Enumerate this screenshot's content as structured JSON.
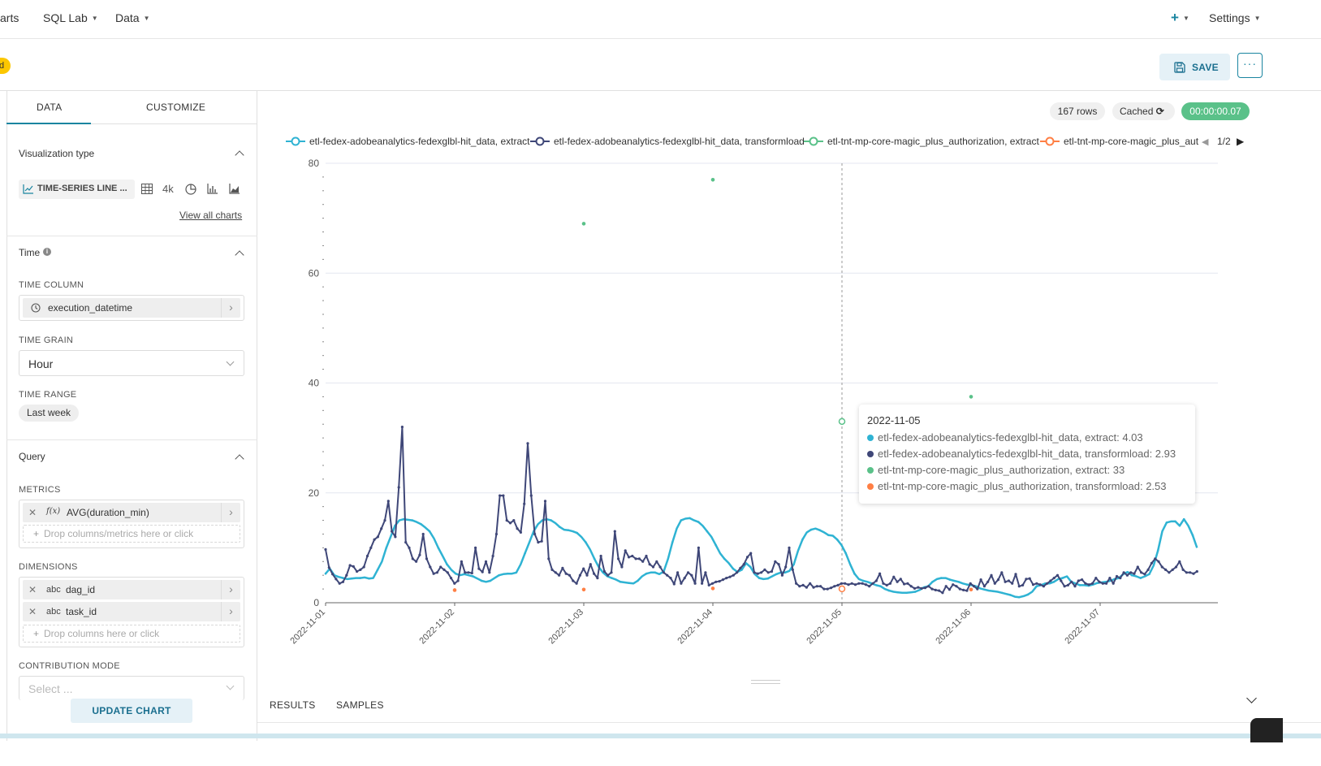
{
  "nav": {
    "charts_label": "arts",
    "sqllab_label": "SQL Lab",
    "data_label": "Data",
    "plus_icon": "+",
    "settings_label": "Settings"
  },
  "header": {
    "status_label": "d",
    "save_label": "SAVE",
    "more_label": "···"
  },
  "left_panel": {
    "tabs": [
      "DATA",
      "CUSTOMIZE"
    ],
    "viz_section_title": "Visualization type",
    "viz_type_label": "TIME-SERIES LINE ...",
    "viz_shortcut_4k": "4k",
    "view_all_label": "View all charts",
    "time_section_title": "Time",
    "time_column_label": "TIME COLUMN",
    "time_column_value": "execution_datetime",
    "time_grain_label": "TIME GRAIN",
    "time_grain_value": "Hour",
    "time_range_label": "TIME RANGE",
    "time_range_value": "Last week",
    "query_section_title": "Query",
    "metrics_label": "METRICS",
    "metric_value": "AVG(duration_min)",
    "metric_type_icon": "f(x)",
    "metrics_drop_placeholder": "Drop columns/metrics here or click",
    "dimensions_label": "DIMENSIONS",
    "dimensions": [
      "dag_id",
      "task_id"
    ],
    "dimension_type_icon": "abc",
    "dimensions_drop_placeholder": "Drop columns here or click",
    "contribution_label": "CONTRIBUTION MODE",
    "contribution_placeholder": "Select ...",
    "update_label": "UPDATE CHART"
  },
  "chart_header": {
    "rows_label": "167 rows",
    "cached_label": "Cached",
    "timer_label": "00:00:00.07"
  },
  "legend": {
    "items": [
      "etl-fedex-adobeanalytics-fedexglbl-hit_data, extract",
      "etl-fedex-adobeanalytics-fedexglbl-hit_data, transformload",
      "etl-tnt-mp-core-magic_plus_authorization, extract",
      "etl-tnt-mp-core-magic_plus_aut"
    ],
    "page_label": "1/2"
  },
  "tooltip": {
    "title": "2022-11-05",
    "rows": [
      "etl-fedex-adobeanalytics-fedexglbl-hit_data, extract: 4.03",
      "etl-fedex-adobeanalytics-fedexglbl-hit_data, transformload: 2.93",
      "etl-tnt-mp-core-magic_plus_authorization, extract: 33",
      "etl-tnt-mp-core-magic_plus_authorization, transformload: 2.53"
    ]
  },
  "bottom_tabs": [
    "RESULTS",
    "SAMPLES"
  ],
  "colors": {
    "series1": "#2fb3d3",
    "series2": "#3f4778",
    "series3": "#5ac189",
    "series4": "#ff7f44",
    "accent": "#1a85a0",
    "timer_green": "#5ac189"
  },
  "chart_data": {
    "type": "line",
    "ylim": [
      0,
      80
    ],
    "yticks": [
      0,
      20,
      40,
      60,
      80
    ],
    "xticks": [
      "2022-11-01",
      "2022-11-02",
      "2022-11-03",
      "2022-11-04",
      "2022-11-05",
      "2022-11-06",
      "2022-11-07"
    ],
    "hover_x": "2022-11-05",
    "series": [
      {
        "name": "etl-fedex-adobeanalytics-fedexglbl-hit_data, extract",
        "x_start": "2022-11-01",
        "x_end": "2022-11-07 18:00",
        "values": [
          5.3,
          6.2,
          5,
          4.7,
          4.5,
          4.3,
          4.4,
          4.5,
          4.5,
          4.6,
          4.4,
          4.5,
          6,
          7.5,
          10,
          12,
          14,
          15,
          15.2,
          15.1,
          15,
          14.7,
          14.3,
          13.7,
          13,
          11.7,
          10,
          8.5,
          7,
          6,
          5.3,
          5,
          5.2,
          5,
          4.8,
          4.4,
          4,
          3.8,
          4,
          4.5,
          5,
          5.2,
          5.3,
          5.3,
          5.5,
          7,
          9,
          11,
          13,
          14.3,
          15,
          15.2,
          15,
          14.5,
          13.8,
          13.3,
          13.2,
          13,
          12.7,
          12,
          11,
          9.7,
          8,
          6.5,
          5.5,
          4.8,
          4.5,
          4.2,
          3.8,
          3.7,
          3.6,
          3.5,
          4,
          4.8,
          5.3,
          5.5,
          5.5,
          5.2,
          5.7,
          8,
          11,
          13.5,
          15,
          15.3,
          15.4,
          15,
          14.7,
          14,
          13,
          12,
          10.5,
          9,
          8,
          7.2,
          6.2,
          5.6,
          6,
          7.2,
          6.5,
          5.2,
          4.5,
          4.3,
          4.4,
          4.8,
          5.2,
          5.5,
          5.5,
          5.8,
          7,
          9.5,
          11.5,
          12.8,
          13.3,
          13.5,
          13.2,
          12.8,
          12.3,
          12.2,
          11.5,
          10.5,
          9,
          7,
          5.3,
          4.3,
          4,
          3.8,
          3.5,
          3.2,
          3,
          2.5,
          2.2,
          2,
          1.9,
          1.8,
          1.8,
          1.9,
          2,
          2.3,
          2.8,
          3,
          3.8,
          4.3,
          4.5,
          4.5,
          4.2,
          4,
          3.8,
          3.5,
          3.3,
          3.2,
          3,
          2.6,
          2.4,
          2.2,
          2.1,
          2,
          1.8,
          1.6,
          1.4,
          1.1,
          1,
          1.2,
          1.5,
          2,
          3,
          3.2,
          3.5,
          3.5,
          3.8,
          4.3,
          4.5,
          4.8,
          3.8,
          3.5,
          3.2,
          3.2,
          3.1,
          3.3,
          3.6,
          3.7,
          3.8,
          4,
          4.3,
          4.5,
          5.2,
          5.6,
          5,
          4.8,
          4.5,
          4.8,
          5.2,
          6.8,
          9.5,
          13,
          14.6,
          14.8,
          14.8,
          14,
          15.2,
          14,
          12.3,
          10
        ]
      },
      {
        "name": "etl-fedex-adobeanalytics-fedexglbl-hit_data, transformload",
        "x_start": "2022-11-01",
        "x_end": "2022-11-07 18:00",
        "values": [
          9.7,
          6.4,
          5.2,
          4.3,
          3.5,
          3.8,
          5,
          6.8,
          6.6,
          5.7,
          6,
          6.5,
          8.5,
          10,
          11.5,
          12,
          13.5,
          15,
          18.5,
          13,
          12,
          21,
          32,
          11,
          10,
          8,
          7.5,
          8.7,
          12.5,
          8,
          6.5,
          5.3,
          5.5,
          6.5,
          6,
          5.5,
          4.5,
          3.5,
          4,
          7.5,
          5.5,
          5.5,
          5.4,
          10,
          6.2,
          5.6,
          7.5,
          5.5,
          8.5,
          12.5,
          19.5,
          19.5,
          15,
          14.5,
          15,
          13.5,
          12.8,
          18,
          29,
          19.5,
          12.5,
          11,
          11.2,
          18.5,
          8,
          6,
          5.5,
          5,
          6.3,
          5.3,
          5,
          4,
          3.5,
          5,
          6.2,
          5,
          7,
          5.3,
          4.5,
          8.5,
          5.7,
          5,
          5.5,
          13,
          8,
          6.5,
          9.5,
          8.3,
          8.5,
          8,
          8,
          7.5,
          8.5,
          7,
          6.5,
          7.5,
          6.5,
          5.5,
          5,
          4.5,
          3.4,
          5.5,
          3.5,
          4.5,
          5.5,
          5,
          3.5,
          10,
          3.5,
          5.5,
          3.2,
          3.5,
          3.8,
          3.9,
          4.2,
          4.5,
          4.7,
          5,
          5.5,
          6.3,
          7,
          8.3,
          9,
          5.5,
          5.3,
          5.5,
          6,
          5.5,
          5.7,
          7.5,
          7,
          5,
          6.5,
          10,
          6,
          3.5,
          3,
          3.2,
          2.8,
          3.5,
          2.8,
          3,
          3,
          2.5,
          2.5,
          2.7,
          3,
          3.2,
          3.5,
          3.5,
          3.3,
          3.5,
          3.3,
          3.5,
          3.5,
          3.3,
          3,
          3.5,
          4,
          5.3,
          3.5,
          3.2,
          3.5,
          4.7,
          3.8,
          4.3,
          3.4,
          3.5,
          3,
          2.6,
          2.8,
          2.6,
          2.7,
          3,
          2.5,
          2.3,
          2.2,
          1.8,
          3,
          2.4,
          3.3,
          3,
          2.5,
          2.3,
          2.2,
          3.5,
          3,
          2.5,
          4.2,
          3,
          3.8,
          5,
          3.5,
          4.2,
          5.5,
          3.8,
          4,
          3.5,
          5.2,
          3,
          3.2,
          4.3,
          4.4,
          3.3,
          3.5,
          3.3,
          3,
          3.5,
          4,
          4.5,
          5,
          4,
          3,
          3.2,
          3.8,
          3,
          4,
          4.2,
          3.5,
          3.3,
          3.5,
          4.5,
          3.8,
          3.5,
          3.5,
          4.5,
          3.5,
          4.8,
          4.5,
          5.5,
          5,
          5.5,
          5.3,
          6.5,
          5.5,
          5.2,
          6,
          7.2,
          8,
          7.5,
          6.5,
          6,
          5.5,
          6,
          6.5,
          7.5,
          6,
          5.5,
          5.5,
          5.3,
          5.7
        ]
      },
      {
        "name": "etl-tnt-mp-core-magic_plus_authorization, extract",
        "points": [
          [
            "2022-11-03",
            69
          ],
          [
            "2022-11-04",
            77
          ],
          [
            "2022-11-05",
            33
          ],
          [
            "2022-11-06",
            37.5
          ]
        ]
      },
      {
        "name": "etl-tnt-mp-core-magic_plus_authorization, transformload",
        "points": [
          [
            "2022-11-02",
            2.3
          ],
          [
            "2022-11-03",
            2.4
          ],
          [
            "2022-11-04",
            2.6
          ],
          [
            "2022-11-05",
            2.53
          ],
          [
            "2022-11-06",
            2.4
          ]
        ]
      }
    ]
  }
}
